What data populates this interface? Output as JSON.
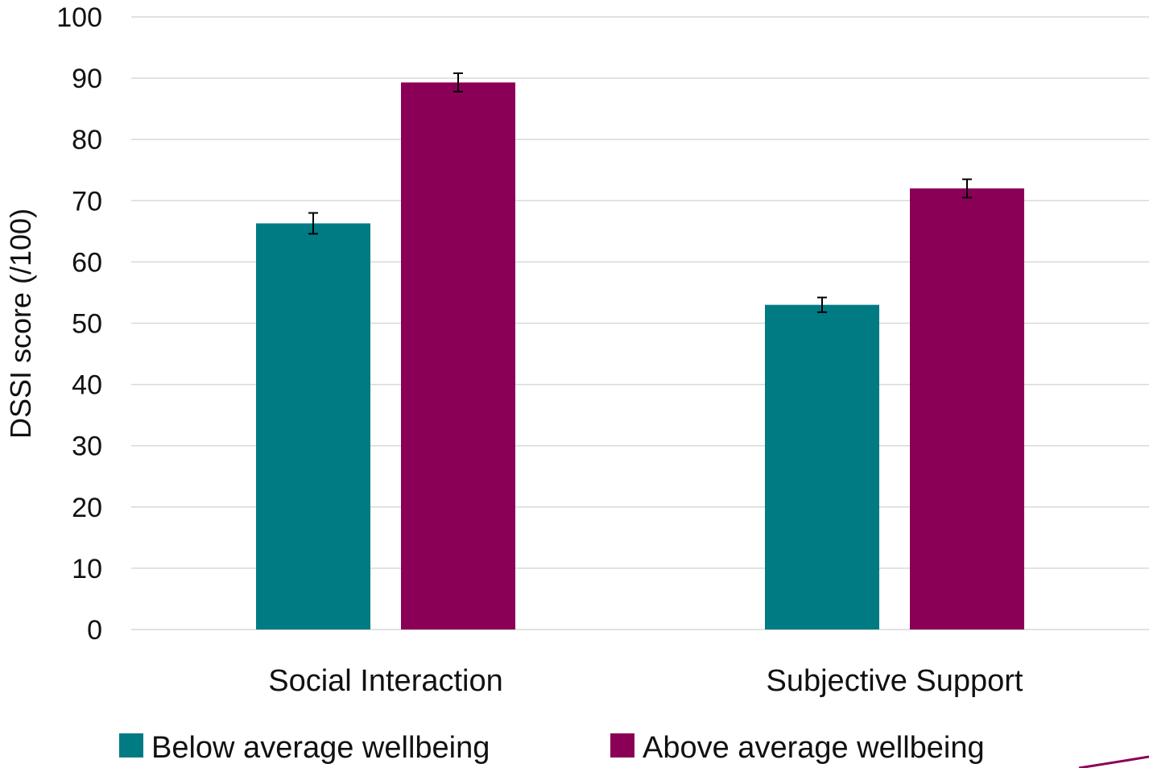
{
  "chart_data": {
    "type": "bar",
    "title": "",
    "xlabel": "",
    "ylabel": "DSSI score (/100)",
    "ylim": [
      0,
      100
    ],
    "yticks": [
      0,
      10,
      20,
      30,
      40,
      50,
      60,
      70,
      80,
      90,
      100
    ],
    "categories": [
      "Social Interaction",
      "Subjective Support"
    ],
    "series": [
      {
        "name": "Below average wellbeing",
        "color": "#007B84",
        "values": [
          66.3,
          53.0
        ],
        "error": [
          1.7,
          1.2
        ]
      },
      {
        "name": "Above average wellbeing",
        "color": "#8B0057",
        "values": [
          89.3,
          72.0
        ],
        "error": [
          1.5,
          1.5
        ]
      }
    ],
    "grid": true,
    "legend_position": "bottom"
  },
  "colors": {
    "gridline": "#D9D9D9",
    "error_bar": "#000000"
  }
}
